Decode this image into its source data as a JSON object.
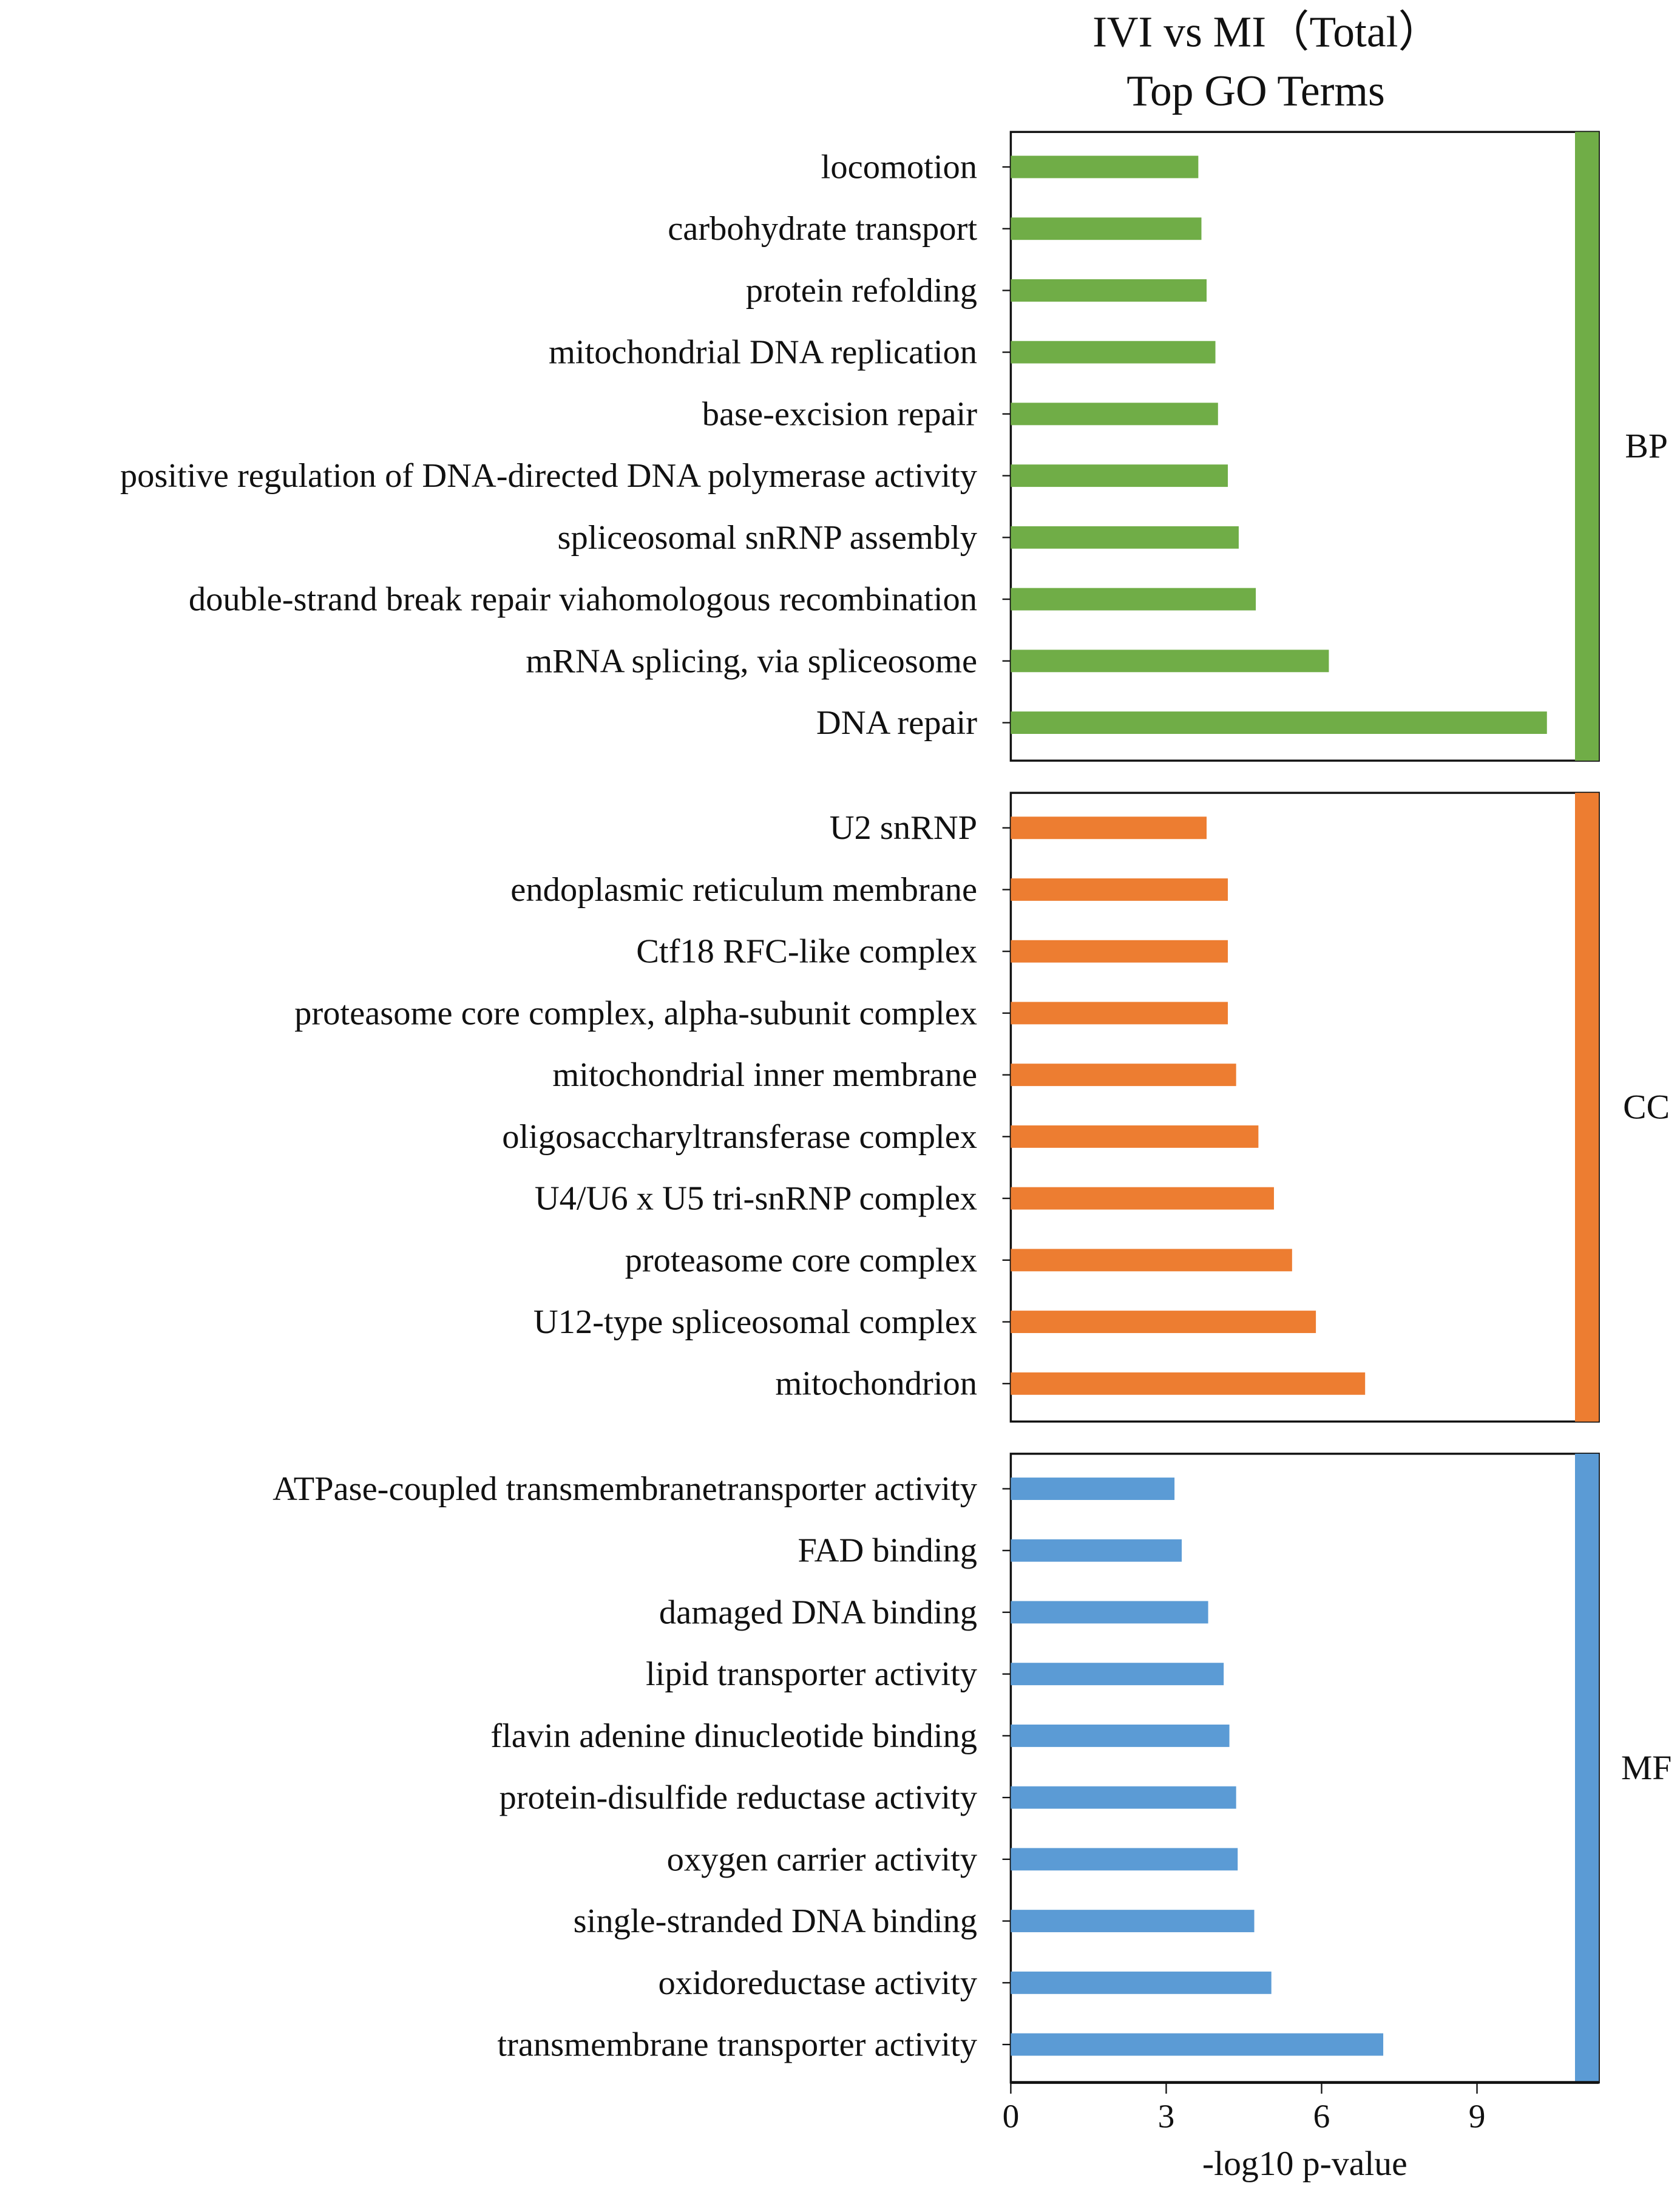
{
  "chart_data": {
    "type": "bar",
    "orientation": "horizontal",
    "title": [
      "IVI vs MI（Total）",
      "Top GO Terms"
    ],
    "xlabel": "-log10 p-value",
    "xlim": [
      0,
      11.4
    ],
    "xticks": [
      "0",
      "3",
      "6",
      "9"
    ],
    "grid": false,
    "panels": [
      {
        "name": "BP",
        "color": "#70AD47",
        "categories": [
          "locomotion",
          "carbohydrate transport",
          "protein refolding",
          "mitochondrial DNA replication",
          "base-excision repair",
          "positive regulation of DNA-directed DNA polymerase activity",
          "spliceosomal snRNP assembly",
          "double-strand break repair viahomologous recombination",
          "mRNA splicing, via spliceosome",
          "DNA repair"
        ],
        "values": [
          3.62,
          3.68,
          3.78,
          3.95,
          4.0,
          4.19,
          4.4,
          4.73,
          6.14,
          10.35
        ]
      },
      {
        "name": "CC",
        "color": "#ED7D31",
        "categories": [
          "U2 snRNP",
          "endoplasmic reticulum membrane",
          "Ctf18 RFC-like complex",
          "proteasome core complex, alpha-subunit complex",
          "mitochondrial inner membrane",
          "oligosaccharyltransferase complex",
          "U4/U6 x U5 tri-snRNP complex",
          "proteasome core complex",
          "U12-type spliceosomal complex",
          "mitochondrion"
        ],
        "values": [
          3.78,
          4.19,
          4.19,
          4.19,
          4.35,
          4.78,
          5.08,
          5.43,
          5.89,
          6.84
        ]
      },
      {
        "name": "MF",
        "color": "#5B9BD5",
        "categories": [
          "ATPase-coupled transmembranetransporter activity",
          "FAD binding",
          "damaged DNA binding",
          "lipid transporter activity",
          "flavin adenine dinucleotide binding",
          "protein-disulfide reductase activity",
          "oxygen carrier activity",
          "single-stranded DNA binding",
          "oxidoreductase activity",
          "transmembrane transporter activity"
        ],
        "values": [
          3.16,
          3.3,
          3.81,
          4.11,
          4.22,
          4.35,
          4.38,
          4.7,
          5.03,
          7.19
        ]
      }
    ]
  }
}
